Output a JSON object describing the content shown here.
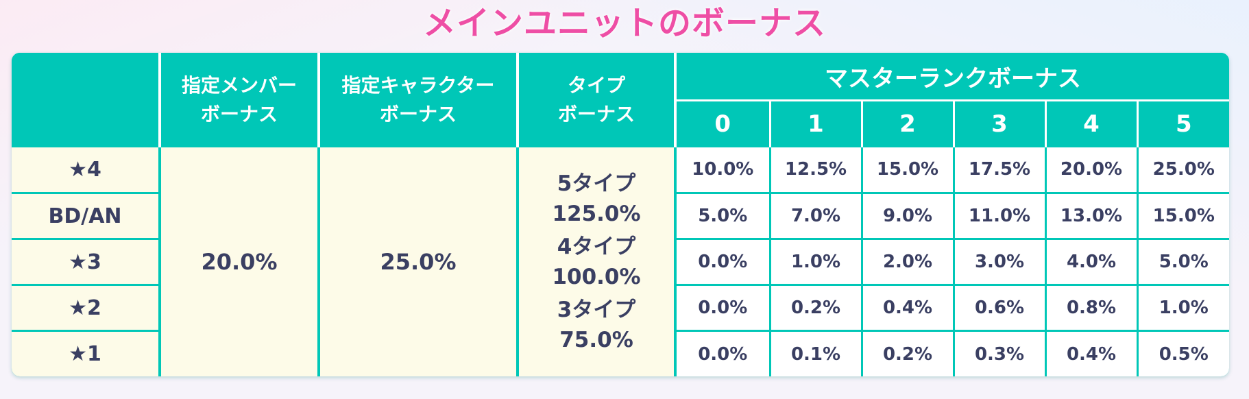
{
  "title": "メインユニットのボーナス",
  "headers": {
    "member_bonus_line1": "指定メンバー",
    "member_bonus_line2": "ボーナス",
    "character_bonus_line1": "指定キャラクター",
    "character_bonus_line2": "ボーナス",
    "type_bonus_line1": "タイプ",
    "type_bonus_line2": "ボーナス",
    "master_rank_bonus": "マスターランクボーナス",
    "ranks": [
      "0",
      "1",
      "2",
      "3",
      "4",
      "5"
    ]
  },
  "rows": [
    {
      "rarity": "★4",
      "values": [
        "10.0%",
        "12.5%",
        "15.0%",
        "17.5%",
        "20.0%",
        "25.0%"
      ]
    },
    {
      "rarity": "BD/AN",
      "values": [
        "5.0%",
        "7.0%",
        "9.0%",
        "11.0%",
        "13.0%",
        "15.0%"
      ]
    },
    {
      "rarity": "★3",
      "values": [
        "0.0%",
        "1.0%",
        "2.0%",
        "3.0%",
        "4.0%",
        "5.0%"
      ]
    },
    {
      "rarity": "★2",
      "values": [
        "0.0%",
        "0.2%",
        "0.4%",
        "0.6%",
        "0.8%",
        "1.0%"
      ]
    },
    {
      "rarity": "★1",
      "values": [
        "0.0%",
        "0.1%",
        "0.2%",
        "0.3%",
        "0.4%",
        "0.5%"
      ]
    }
  ],
  "member_bonus_value": "20.0%",
  "character_bonus_value": "25.0%",
  "type_bonus": [
    {
      "label": "5タイプ",
      "value": "125.0%"
    },
    {
      "label": "4タイプ",
      "value": "100.0%"
    },
    {
      "label": "3タイプ",
      "value": "75.0%"
    }
  ],
  "colors": {
    "header_teal": "#00c7b7",
    "title_pink": "#ee4ea5",
    "cream_cell": "#fdfbe8",
    "text_navy": "#3a3f62"
  }
}
